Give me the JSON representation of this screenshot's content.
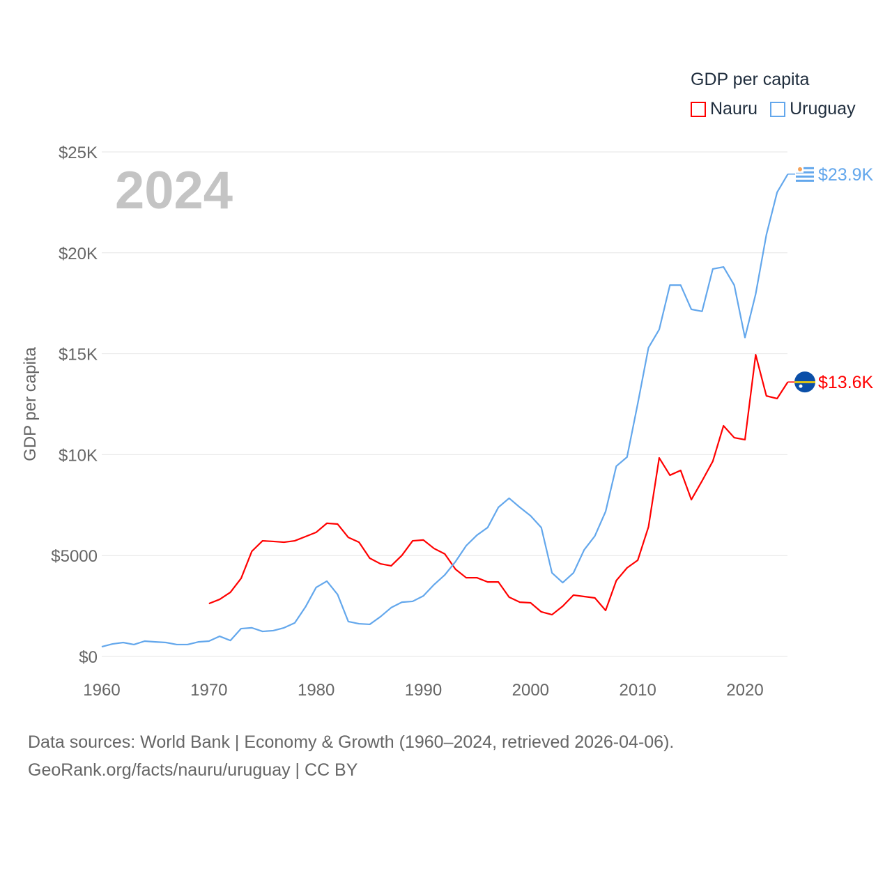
{
  "chart_data": {
    "type": "line",
    "title": "",
    "xlabel": "",
    "ylabel": "GDP per capita",
    "xlim": [
      1960,
      2024
    ],
    "ylim": [
      0,
      25000
    ],
    "grid": true,
    "x_ticks": [
      "1960",
      "1970",
      "1980",
      "1990",
      "2000",
      "2010",
      "2020"
    ],
    "x_tick_values": [
      1960,
      1970,
      1980,
      1990,
      2000,
      2010,
      2020
    ],
    "y_ticks": [
      "$0",
      "$5000",
      "$10K",
      "$15K",
      "$20K",
      "$25K"
    ],
    "y_tick_values": [
      0,
      5000,
      10000,
      15000,
      20000,
      25000
    ],
    "legend_title": "GDP per capita",
    "legend_placement": "top-right",
    "year_label": "2024",
    "series": [
      {
        "name": "Nauru",
        "color": "#ff0000",
        "end_label": "$13.6K",
        "flag": "nauru-flag",
        "x": [
          1970,
          1971,
          1972,
          1973,
          1974,
          1975,
          1976,
          1977,
          1978,
          1979,
          1980,
          1981,
          1982,
          1983,
          1984,
          1985,
          1986,
          1987,
          1988,
          1989,
          1990,
          1991,
          1992,
          1993,
          1994,
          1995,
          1996,
          1997,
          1998,
          1999,
          2000,
          2001,
          2002,
          2003,
          2004,
          2005,
          2006,
          2007,
          2008,
          2009,
          2010,
          2011,
          2012,
          2013,
          2014,
          2015,
          2016,
          2017,
          2018,
          2019,
          2020,
          2021,
          2022,
          2023,
          2024
        ],
        "values": [
          2620,
          2830,
          3180,
          3870,
          5210,
          5730,
          5700,
          5660,
          5730,
          5940,
          6150,
          6600,
          6560,
          5900,
          5660,
          4870,
          4590,
          4490,
          5010,
          5730,
          5770,
          5350,
          5080,
          4320,
          3900,
          3900,
          3690,
          3690,
          2940,
          2690,
          2660,
          2210,
          2070,
          2490,
          3040,
          2970,
          2900,
          2280,
          3760,
          4390,
          4770,
          6420,
          9840,
          8980,
          9220,
          7770,
          8700,
          9670,
          11430,
          10840,
          10740,
          14950,
          12910,
          12780,
          13600
        ]
      },
      {
        "name": "Uruguay",
        "color": "#63a7ec",
        "end_label": "$23.9K",
        "flag": "uruguay-flag",
        "x": [
          1960,
          1961,
          1962,
          1963,
          1964,
          1965,
          1966,
          1967,
          1968,
          1969,
          1970,
          1971,
          1972,
          1973,
          1974,
          1975,
          1976,
          1977,
          1978,
          1979,
          1980,
          1981,
          1982,
          1983,
          1984,
          1985,
          1986,
          1987,
          1988,
          1989,
          1990,
          1991,
          1992,
          1993,
          1994,
          1995,
          1996,
          1997,
          1998,
          1999,
          2000,
          2001,
          2002,
          2003,
          2004,
          2005,
          2006,
          2007,
          2008,
          2009,
          2010,
          2011,
          2012,
          2013,
          2014,
          2015,
          2016,
          2017,
          2018,
          2019,
          2020,
          2021,
          2022,
          2023,
          2024
        ],
        "values": [
          480,
          620,
          690,
          590,
          760,
          720,
          690,
          590,
          590,
          720,
          760,
          1000,
          790,
          1380,
          1420,
          1240,
          1280,
          1420,
          1660,
          2450,
          3420,
          3730,
          3070,
          1730,
          1620,
          1590,
          1970,
          2420,
          2690,
          2730,
          3000,
          3560,
          4040,
          4700,
          5490,
          6010,
          6390,
          7390,
          7840,
          7390,
          6970,
          6390,
          4140,
          3660,
          4140,
          5280,
          5970,
          7180,
          9430,
          9880,
          12530,
          15300,
          16200,
          18400,
          18400,
          17200,
          17100,
          19200,
          19300,
          18400,
          15800,
          17960,
          20900,
          23000,
          23900
        ]
      }
    ]
  },
  "source": {
    "line1": "Data sources: World Bank | Economy & Growth (1960–2024, retrieved 2026-04-06).",
    "line2": "GeoRank.org/facts/nauru/uruguay | CC BY"
  }
}
